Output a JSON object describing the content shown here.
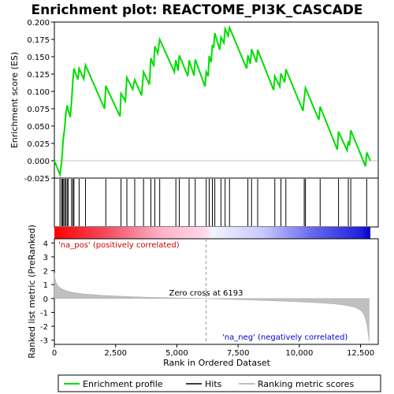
{
  "chart_data": {
    "type": "line",
    "title": "Enrichment plot: REACTOME_PI3K_CASCADE",
    "top_panel": {
      "ylabel": "Enrichment score (ES)",
      "ylim": [
        -0.025,
        0.2
      ],
      "yticks": [
        "0.200",
        "0.175",
        "0.150",
        "0.125",
        "0.100",
        "0.075",
        "0.050",
        "0.025",
        "0.000",
        "-0.025"
      ],
      "ytick_values": [
        0.2,
        0.175,
        0.15,
        0.125,
        0.1,
        0.075,
        0.05,
        0.025,
        0.0,
        -0.025
      ],
      "series": [
        {
          "name": "Enrichment profile",
          "color": "#00dd00",
          "x": [
            0,
            230,
            300,
            330,
            360,
            420,
            460,
            520,
            560,
            650,
            700,
            760,
            800,
            960,
            1010,
            1200,
            1270,
            2050,
            2100,
            2680,
            2720,
            2900,
            2960,
            3200,
            3280,
            3560,
            3640,
            3880,
            3940,
            4060,
            4100,
            4220,
            4300,
            4900,
            4960,
            5050,
            5100,
            5450,
            5500,
            5700,
            5750,
            6150,
            6200,
            6280,
            6320,
            6400,
            6450,
            6500,
            6550,
            6750,
            6800,
            6920,
            6970,
            7100,
            7150,
            7850,
            7900,
            8000,
            8050,
            8250,
            8300,
            8950,
            9000,
            9200,
            9250,
            9400,
            9450,
            10150,
            10200,
            10250,
            10800,
            10850,
            11550,
            11600,
            11950,
            12000,
            12050,
            12100,
            12700,
            12750,
            12900
          ],
          "y": [
            0.0,
            -0.02,
            0.0,
            0.015,
            0.03,
            0.047,
            0.065,
            0.08,
            0.074,
            0.063,
            0.085,
            0.118,
            0.133,
            0.117,
            0.133,
            0.118,
            0.138,
            0.075,
            0.108,
            0.064,
            0.097,
            0.086,
            0.12,
            0.103,
            0.117,
            0.094,
            0.128,
            0.11,
            0.148,
            0.136,
            0.165,
            0.155,
            0.175,
            0.128,
            0.145,
            0.13,
            0.152,
            0.122,
            0.145,
            0.123,
            0.146,
            0.107,
            0.128,
            0.122,
            0.151,
            0.142,
            0.167,
            0.163,
            0.184,
            0.16,
            0.178,
            0.17,
            0.19,
            0.18,
            0.192,
            0.133,
            0.152,
            0.14,
            0.161,
            0.142,
            0.16,
            0.102,
            0.122,
            0.107,
            0.126,
            0.113,
            0.132,
            0.072,
            0.09,
            0.105,
            0.059,
            0.078,
            0.016,
            0.042,
            0.015,
            0.028,
            0.022,
            0.044,
            -0.008,
            0.012,
            0.0
          ]
        }
      ]
    },
    "hits": {
      "name": "Hits",
      "x": [
        230,
        300,
        330,
        360,
        420,
        460,
        520,
        560,
        700,
        760,
        800,
        1010,
        1270,
        2100,
        2720,
        2960,
        3280,
        3640,
        3940,
        4100,
        4300,
        4960,
        5100,
        5500,
        5750,
        6200,
        6320,
        6450,
        6550,
        6800,
        6970,
        7150,
        7900,
        8050,
        8300,
        9000,
        9250,
        9450,
        10200,
        10250,
        10850,
        11600,
        12000,
        12100,
        12750
      ]
    },
    "bar": {
      "label_pos": "'na_pos' (positively correlated)",
      "label_neg": "'na_neg' (negatively correlated)"
    },
    "bottom_panel": {
      "ylabel": "Ranked list metric (PreRanked)",
      "xlabel": "Rank in Ordered Dataset",
      "ylim": [
        -3.3,
        4.3
      ],
      "yticks": [
        "4",
        "3",
        "2",
        "1",
        "0",
        "-1",
        "-2",
        "-3"
      ],
      "ytick_values": [
        4,
        3,
        2,
        1,
        0,
        -1,
        -2,
        -3
      ],
      "xticks": [
        "0",
        "2,500",
        "5,000",
        "7,500",
        "10,000",
        "12,500"
      ],
      "xtick_values": [
        0,
        2500,
        5000,
        7500,
        10000,
        12500
      ],
      "xlim": [
        0,
        12900
      ],
      "zero_cross_label": "Zero cross at 6193",
      "zero_cross": 6193,
      "metric": {
        "x": [
          0,
          30,
          80,
          150,
          300,
          500,
          800,
          1200,
          2000,
          3000,
          4000,
          5000,
          6193,
          7000,
          8000,
          9000,
          10000,
          11000,
          11500,
          12000,
          12300,
          12500,
          12650,
          12750,
          12800,
          12850
        ],
        "y": [
          1.8,
          1.4,
          1.1,
          0.9,
          0.7,
          0.55,
          0.42,
          0.33,
          0.22,
          0.14,
          0.08,
          0.04,
          0.0,
          -0.05,
          -0.1,
          -0.17,
          -0.24,
          -0.33,
          -0.4,
          -0.52,
          -0.65,
          -0.85,
          -1.2,
          -1.8,
          -2.4,
          -3.1
        ]
      }
    },
    "legend": [
      {
        "label": "Enrichment profile",
        "color": "#00dd00"
      },
      {
        "label": "Hits",
        "color": "#000000"
      },
      {
        "label": "Ranking metric scores",
        "color": "#c0c0c0"
      }
    ]
  }
}
